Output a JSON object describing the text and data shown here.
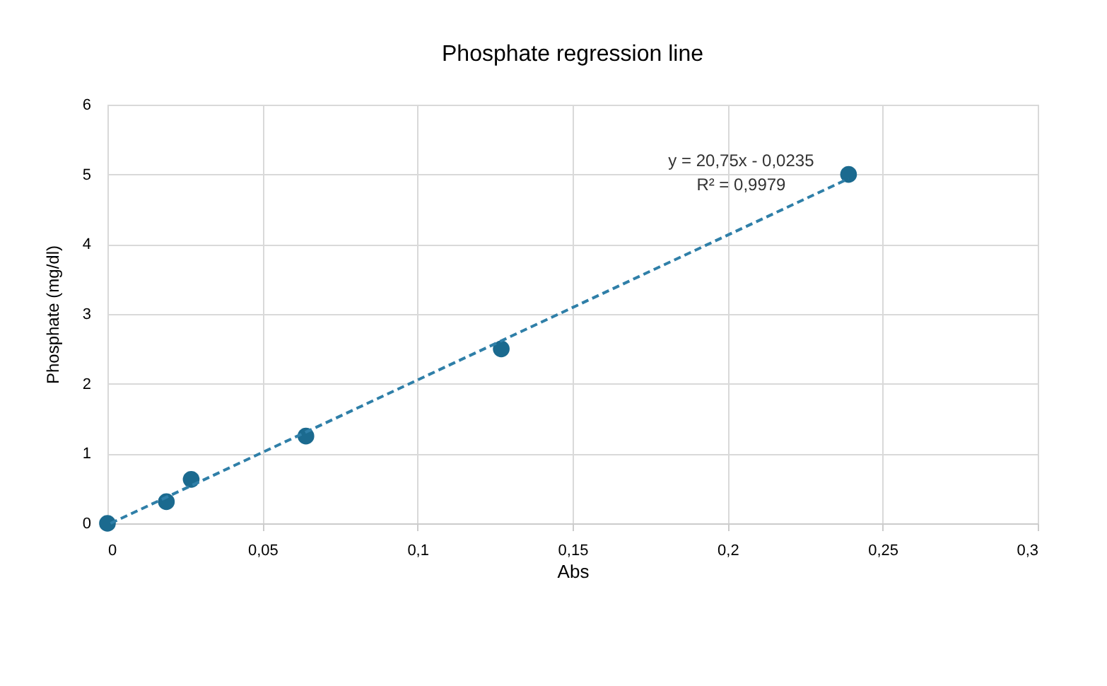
{
  "chart_data": {
    "type": "scatter",
    "title": "Phosphate regression line",
    "xlabel": "Abs",
    "ylabel": "Phosphate (mg/dl)",
    "xlim": [
      0,
      0.3
    ],
    "xticks": [
      0,
      {
        "value": 0.05,
        "label": "0,05"
      },
      {
        "value": 0.1,
        "label": "0,1"
      },
      {
        "value": 0.15,
        "label": "0,15"
      },
      {
        "value": 0.2,
        "label": "0,2"
      },
      {
        "value": 0.25,
        "label": "0,25"
      },
      {
        "value": 0.3,
        "label": "0,3"
      }
    ],
    "ylim": [
      0,
      6
    ],
    "yticks": [
      0,
      1,
      2,
      3,
      4,
      5,
      6
    ],
    "grid": true,
    "series": [
      {
        "type": "scatter",
        "color": "#1b6a8f",
        "marker": "circle",
        "x": [
          0,
          0.019,
          0.027,
          0.064,
          0.127,
          0.239
        ],
        "values": [
          0,
          0.31,
          0.63,
          1.25,
          2.5,
          5.0
        ]
      },
      {
        "type": "line",
        "color": "#2f7fa8",
        "line_style": "dashed",
        "marker": "none",
        "x": [
          0.001,
          0.239
        ],
        "values": [
          0.0,
          4.94
        ]
      }
    ],
    "annotations": [
      "y = 20,75x - 0,0235",
      "R² = 0,9979"
    ]
  }
}
